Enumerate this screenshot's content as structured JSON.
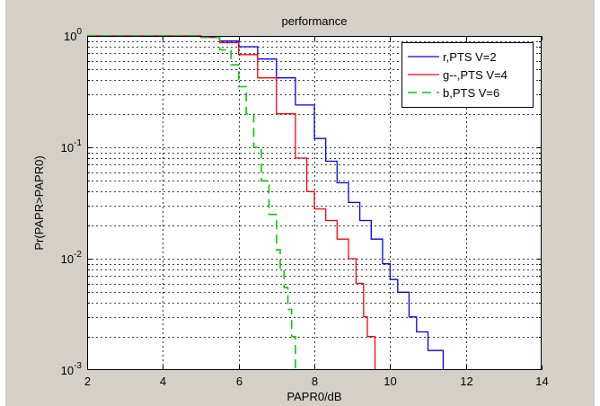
{
  "chart_data": {
    "type": "line",
    "title": "performance",
    "xlabel": "PAPR0/dB",
    "ylabel": "Pr(PAPR>PAPR0)",
    "xlim": [
      2,
      14
    ],
    "ylim": [
      0.001,
      1
    ],
    "yscale": "log",
    "grid": true,
    "legend_position": "top-right",
    "xticks": [
      2,
      4,
      6,
      8,
      10,
      12,
      14
    ],
    "xtick_labels": [
      "2",
      "4",
      "6",
      "8",
      "10",
      "12",
      "14"
    ],
    "yticks": [
      0.001,
      0.01,
      0.1,
      1
    ],
    "ytick_labels": [
      {
        "base": "10",
        "exp": "-3"
      },
      {
        "base": "10",
        "exp": "-2"
      },
      {
        "base": "10",
        "exp": "-1"
      },
      {
        "base": "10",
        "exp": "0"
      }
    ],
    "series": [
      {
        "name": "r,PTS V=2",
        "color": "#0000ff",
        "dash": "solid",
        "x": [
          4.6,
          5.0,
          5.5,
          6.0,
          6.5,
          7.0,
          7.5,
          8.0,
          8.3,
          8.6,
          8.9,
          9.2,
          9.5,
          9.8,
          10.0,
          10.2,
          10.5,
          10.7,
          11.0,
          11.4
        ],
        "y": [
          1.0,
          0.97,
          0.9,
          0.8,
          0.62,
          0.42,
          0.24,
          0.12,
          0.075,
          0.048,
          0.032,
          0.022,
          0.015,
          0.009,
          0.0065,
          0.005,
          0.003,
          0.0022,
          0.0015,
          0.001
        ]
      },
      {
        "name": "g--,PTS V=4",
        "color": "#ff0000",
        "dash": "solid",
        "x": [
          4.6,
          5.0,
          5.5,
          6.0,
          6.5,
          7.0,
          7.5,
          7.8,
          8.0,
          8.3,
          8.6,
          8.9,
          9.1,
          9.3,
          9.4,
          9.6
        ],
        "y": [
          1.0,
          0.97,
          0.87,
          0.68,
          0.42,
          0.2,
          0.08,
          0.04,
          0.028,
          0.022,
          0.015,
          0.01,
          0.006,
          0.003,
          0.002,
          0.001
        ]
      },
      {
        "name": "b,PTS V=6",
        "color": "#00cc00",
        "dash": "dashed",
        "x": [
          4.6,
          5.0,
          5.5,
          5.8,
          6.0,
          6.2,
          6.4,
          6.6,
          6.8,
          7.0,
          7.1,
          7.2,
          7.3,
          7.4,
          7.5
        ],
        "y": [
          1.0,
          0.97,
          0.75,
          0.55,
          0.35,
          0.2,
          0.1,
          0.05,
          0.025,
          0.012,
          0.008,
          0.0055,
          0.0035,
          0.002,
          0.001
        ]
      }
    ]
  }
}
